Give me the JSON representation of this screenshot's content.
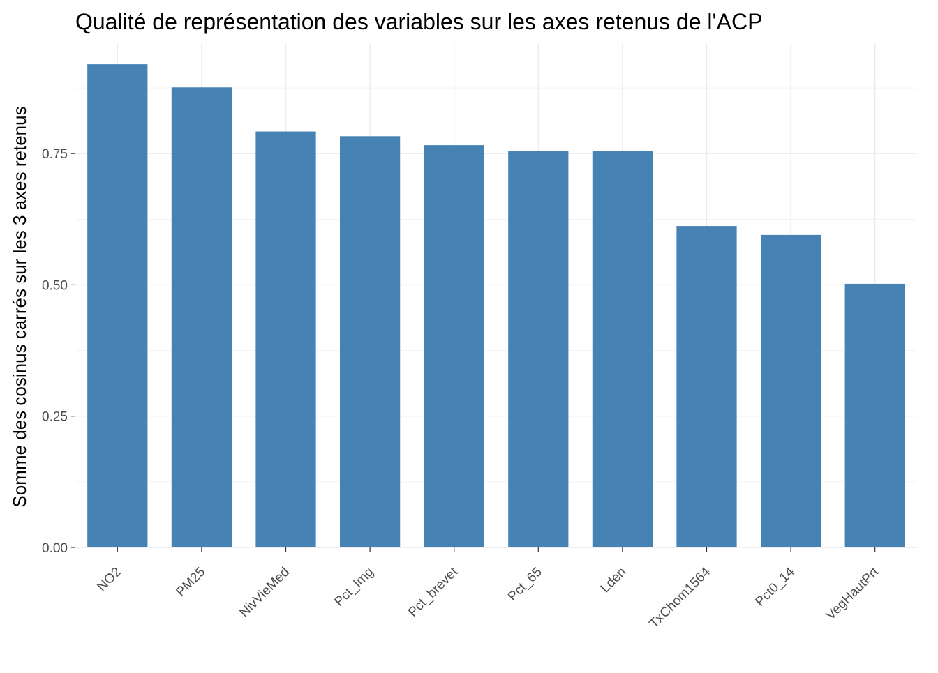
{
  "chart_data": {
    "type": "bar",
    "title": "Qualité de représentation des variables sur les axes retenus de l'ACP",
    "xlabel": "",
    "ylabel": "Somme des cosinus carrés sur les 3 axes retenus",
    "categories": [
      "NO2",
      "PM25",
      "NivVieMed",
      "Pct_Img",
      "Pct_brevet",
      "Pct_65",
      "Lden",
      "TxChom1564",
      "Pct0_14",
      "VegHautPrt"
    ],
    "values": [
      0.92,
      0.876,
      0.792,
      0.783,
      0.766,
      0.755,
      0.755,
      0.612,
      0.595,
      0.502
    ],
    "ylim": [
      0,
      0.96
    ],
    "yticks": [
      0.0,
      0.25,
      0.5,
      0.75
    ],
    "ytick_labels": [
      "0.00",
      "0.25",
      "0.50",
      "0.75"
    ],
    "grid": true,
    "legend": "none",
    "bar_color": "#4682b4"
  }
}
